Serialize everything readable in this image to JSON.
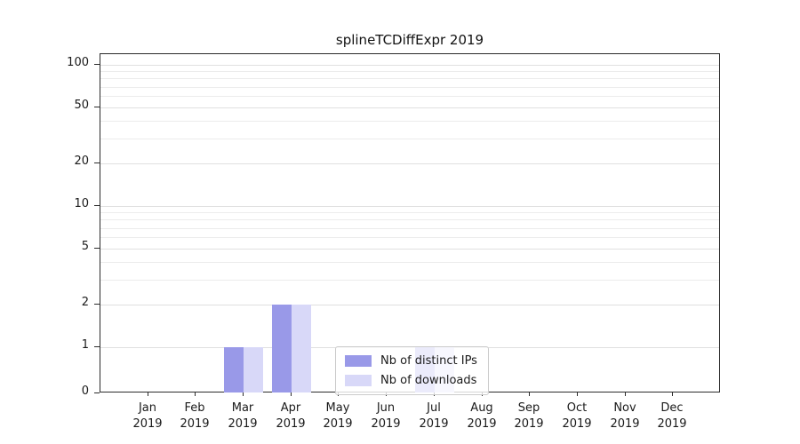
{
  "chart_data": {
    "type": "bar",
    "title": "splineTCDiffExpr 2019",
    "year": "2019",
    "categories": [
      "Jan",
      "Feb",
      "Mar",
      "Apr",
      "May",
      "Jun",
      "Jul",
      "Aug",
      "Sep",
      "Oct",
      "Nov",
      "Dec"
    ],
    "series": [
      {
        "name": "Nb of distinct IPs",
        "color": "#9999e8",
        "values": [
          0,
          0,
          1,
          2,
          0,
          0,
          1,
          0,
          0,
          0,
          0,
          0
        ]
      },
      {
        "name": "Nb of downloads",
        "color": "#d8d8f8",
        "values": [
          0,
          0,
          1,
          2,
          0,
          0,
          1,
          0,
          0,
          0,
          0,
          0
        ]
      }
    ],
    "y_ticks": [
      0,
      1,
      2,
      5,
      10,
      20,
      50,
      100
    ],
    "yscale": "log",
    "ylim": [
      0,
      100
    ],
    "grid": true,
    "legend_position": "bottom-center"
  }
}
